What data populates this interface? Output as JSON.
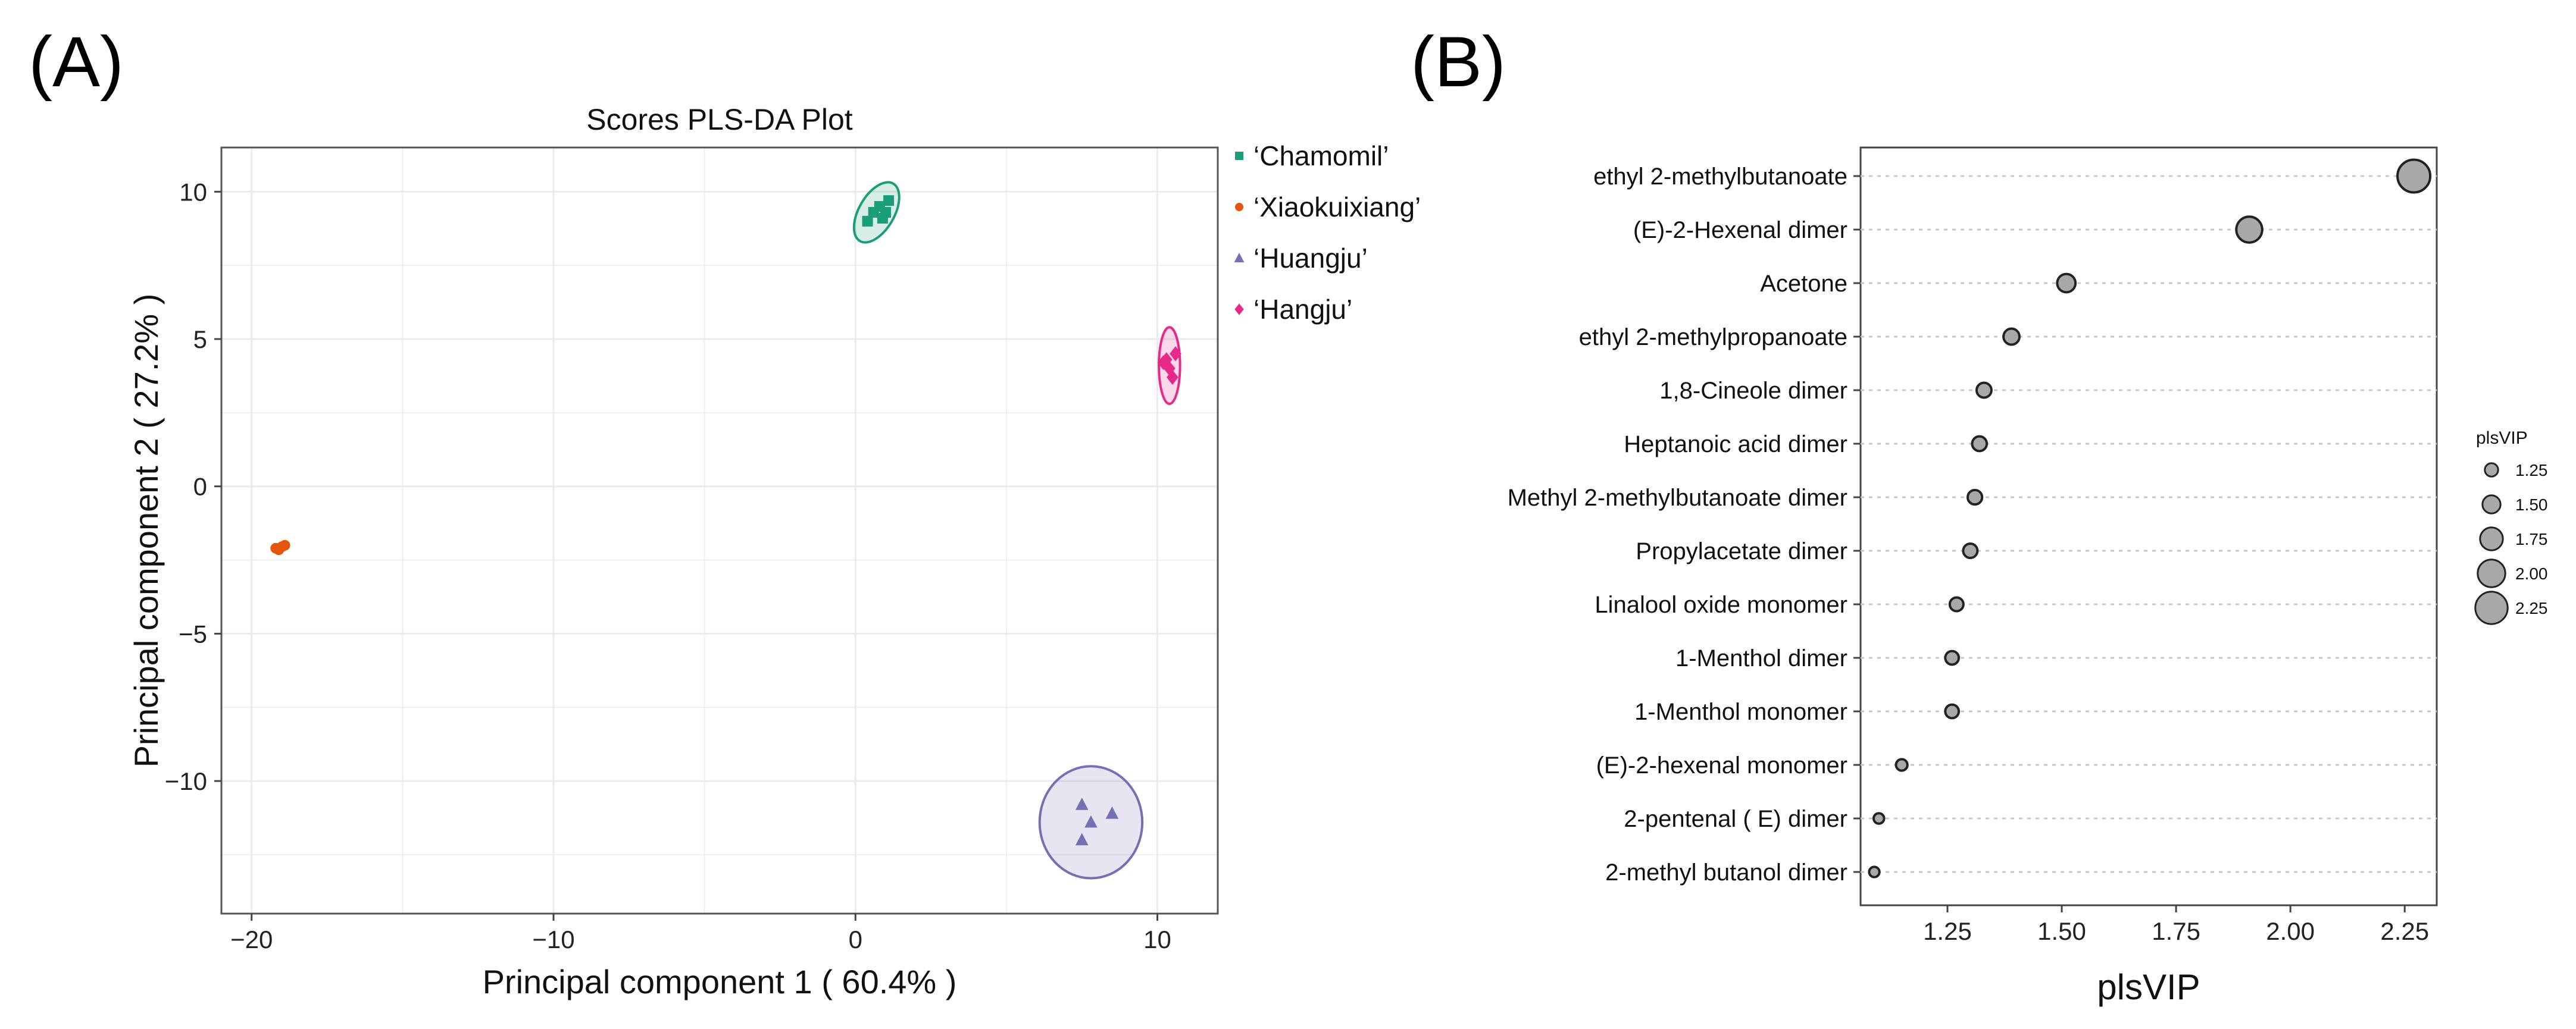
{
  "panels": {
    "a_label": "(A)",
    "b_label": "(B)"
  },
  "chart_data": [
    {
      "type": "scatter",
      "title": "Scores PLS-DA Plot",
      "xlabel": "Principal component 1 ( 60.4% )",
      "ylabel": "Principal component 2 ( 27.2% )",
      "xlim": [
        -21,
        12
      ],
      "ylim": [
        -14.5,
        11.5
      ],
      "xticks": [
        -20,
        -10,
        0,
        10
      ],
      "xtick_labels": [
        "−20",
        "−10",
        "0",
        "10"
      ],
      "yticks": [
        10,
        5,
        0,
        -5,
        -10
      ],
      "ytick_labels": [
        "10",
        "5",
        "0",
        "−5",
        "−10"
      ],
      "grid": true,
      "legend_position": "right",
      "series": [
        {
          "name": "‘Chamomil’",
          "color": "#1b9e77",
          "marker": "square",
          "points": [
            [
              0.4,
              9.0
            ],
            [
              0.6,
              9.3
            ],
            [
              0.8,
              9.5
            ],
            [
              1.1,
              9.7
            ],
            [
              1.0,
              9.3
            ],
            [
              0.9,
              9.1
            ]
          ],
          "ellipse": {
            "cx": 0.7,
            "cy": 9.3,
            "rx": 1.1,
            "ry": 0.6,
            "angle": 60
          }
        },
        {
          "name": "‘Xiaokuixiang’",
          "color": "#e6550d",
          "marker": "circle",
          "points": [
            [
              -19.2,
              -2.1
            ],
            [
              -19.0,
              -2.05
            ],
            [
              -18.9,
              -2.0
            ],
            [
              -19.1,
              -2.15
            ]
          ],
          "ellipse": {
            "cx": -19.05,
            "cy": -2.07,
            "rx": 0.22,
            "ry": 0.1,
            "angle": 30
          }
        },
        {
          "name": "‘Huangju’",
          "color": "#7570b3",
          "marker": "triangle",
          "points": [
            [
              7.5,
              -10.8
            ],
            [
              7.8,
              -11.4
            ],
            [
              8.5,
              -11.1
            ],
            [
              7.5,
              -12.0
            ]
          ],
          "ellipse": {
            "cx": 7.8,
            "cy": -11.4,
            "rx": 1.7,
            "ry": 1.9,
            "angle": 0
          }
        },
        {
          "name": "‘Hangju’",
          "color": "#e7298a",
          "marker": "diamond",
          "points": [
            [
              10.3,
              4.3
            ],
            [
              10.6,
              4.5
            ],
            [
              10.4,
              4.0
            ],
            [
              10.5,
              3.7
            ],
            [
              10.2,
              4.2
            ]
          ],
          "ellipse": {
            "cx": 10.4,
            "cy": 4.1,
            "rx": 0.35,
            "ry": 1.3,
            "angle": 0
          }
        }
      ]
    },
    {
      "type": "scatter",
      "title": "",
      "xlabel": "plsVIP",
      "ylabel": "",
      "xlim": [
        1.06,
        2.32
      ],
      "xticks": [
        1.25,
        1.5,
        1.75,
        2.0,
        2.25
      ],
      "xtick_labels": [
        "1.25",
        "1.50",
        "1.75",
        "2.00",
        "2.25"
      ],
      "point_color": "#a8a8a8",
      "legend": {
        "title": "plsVIP",
        "values": [
          1.25,
          1.5,
          1.75,
          2.0,
          2.25
        ],
        "labels": [
          "1.25",
          "1.50",
          "1.75",
          "2.00",
          "2.25"
        ]
      },
      "categories": [
        "ethyl 2-methylbutanoate",
        "(E)-2-Hexenal dimer",
        "Acetone",
        "ethyl 2-methylpropanoate",
        "1,8-Cineole dimer",
        "Heptanoic acid dimer",
        "Methyl 2-methylbutanoate dimer",
        "Propylacetate dimer",
        "Linalool oxide monomer",
        "1-Menthol dimer",
        "1-Menthol monomer",
        "(E)-2-hexenal monomer",
        "2-pentenal ( E) dimer",
        "2-methyl butanol dimer"
      ],
      "values": [
        2.27,
        1.91,
        1.51,
        1.39,
        1.33,
        1.32,
        1.31,
        1.3,
        1.27,
        1.26,
        1.26,
        1.15,
        1.1,
        1.09
      ]
    }
  ]
}
